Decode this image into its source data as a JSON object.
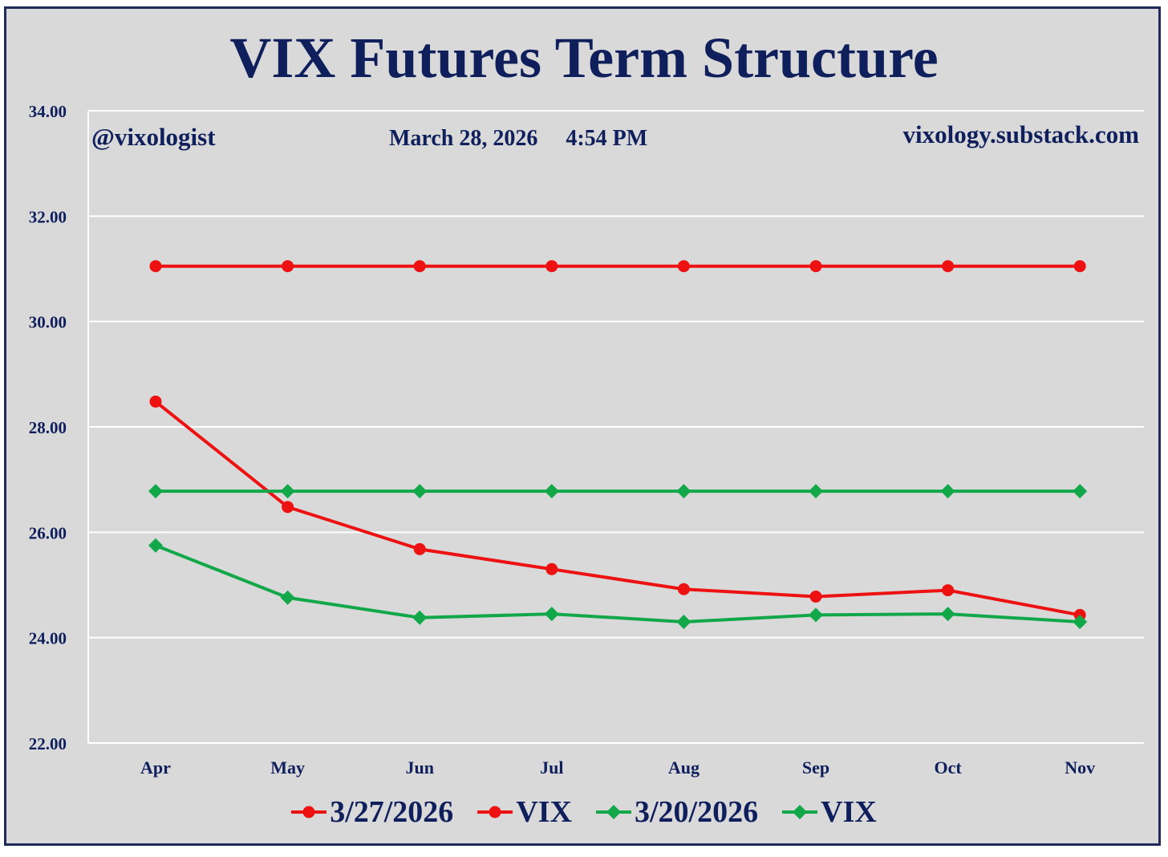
{
  "header": {
    "title": "VIX Futures Term Structure",
    "handle": "@vixologist",
    "date": "March 28, 2026",
    "time": "4:54 PM",
    "site": "vixology.substack.com"
  },
  "colors": {
    "red": "#ee1111",
    "green": "#12a84a",
    "text": "#0f1f5c",
    "background": "#d9d9d9"
  },
  "chart_data": {
    "type": "line",
    "categories": [
      "Apr",
      "May",
      "Jun",
      "Jul",
      "Aug",
      "Sep",
      "Oct",
      "Nov"
    ],
    "ylim": [
      22,
      34
    ],
    "yticks": [
      "22.00",
      "24.00",
      "26.00",
      "28.00",
      "30.00",
      "32.00",
      "34.00"
    ],
    "grid": true,
    "legend_position": "bottom",
    "series": [
      {
        "name": "3/27/2026",
        "color": "#ee1111",
        "marker": "circle",
        "values": [
          28.48,
          26.48,
          25.68,
          25.3,
          24.92,
          24.78,
          24.9,
          24.43
        ]
      },
      {
        "name": "VIX",
        "color": "#ee1111",
        "marker": "circle",
        "values": [
          31.05,
          31.05,
          31.05,
          31.05,
          31.05,
          31.05,
          31.05,
          31.05
        ]
      },
      {
        "name": "3/20/2026",
        "color": "#12a84a",
        "marker": "diamond",
        "values": [
          25.75,
          24.76,
          24.38,
          24.45,
          24.3,
          24.43,
          24.45,
          24.3
        ]
      },
      {
        "name": "VIX",
        "color": "#12a84a",
        "marker": "diamond",
        "values": [
          26.78,
          26.78,
          26.78,
          26.78,
          26.78,
          26.78,
          26.78,
          26.78
        ]
      }
    ]
  }
}
